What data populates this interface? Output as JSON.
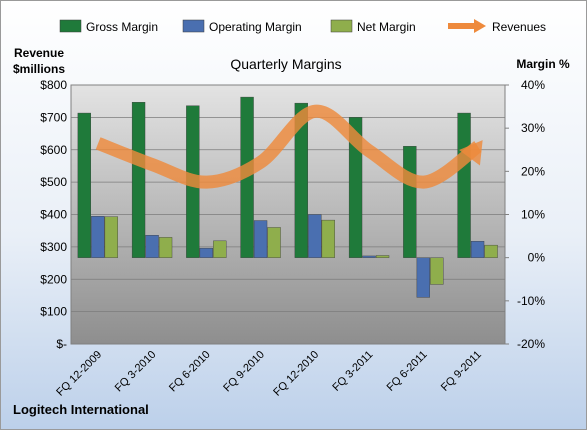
{
  "chart_data": {
    "type": "bar",
    "title": "Quarterly Margins",
    "footer": "Logitech International",
    "categories": [
      "FQ 12-2009",
      "FQ 3-2010",
      "FQ 6-2010",
      "FQ 9-2010",
      "FQ 12-2010",
      "FQ 3-2011",
      "FQ 6-2011",
      "FQ 9-2011"
    ],
    "y_left": {
      "label_line1": "Revenue",
      "label_line2": "$millions",
      "range": [
        0,
        800
      ],
      "ticks": [
        "$-",
        "$100",
        "$200",
        "$300",
        "$400",
        "$500",
        "$600",
        "$700",
        "$800"
      ]
    },
    "y_right": {
      "label": "Margin %",
      "range": [
        -20,
        40
      ],
      "ticks": [
        "-20%",
        "-10%",
        "0%",
        "10%",
        "20%",
        "30%",
        "40%"
      ]
    },
    "series": [
      {
        "name": "Gross Margin",
        "axis": "right",
        "type": "bar",
        "color": "#1f7a3a",
        "values": [
          33.5,
          36,
          35.2,
          37.2,
          35.8,
          32.5,
          25.8,
          33.5
        ]
      },
      {
        "name": "Operating Margin",
        "axis": "right",
        "type": "bar",
        "color": "#4a6fb0",
        "values": [
          9.6,
          5.2,
          2.2,
          8.6,
          10,
          0.4,
          -9.2,
          3.8
        ]
      },
      {
        "name": "Net Margin",
        "axis": "right",
        "type": "bar",
        "color": "#8fae4c",
        "values": [
          9.5,
          4.7,
          3.9,
          7,
          8.7,
          0.5,
          -6.2,
          2.9
        ]
      },
      {
        "name": "Revenues",
        "axis": "left",
        "type": "line",
        "color": "#ee8a3c",
        "values": [
          620,
          554,
          500,
          562,
          719,
          596,
          500,
          610
        ]
      }
    ],
    "legend_position": "top",
    "grid": true
  }
}
